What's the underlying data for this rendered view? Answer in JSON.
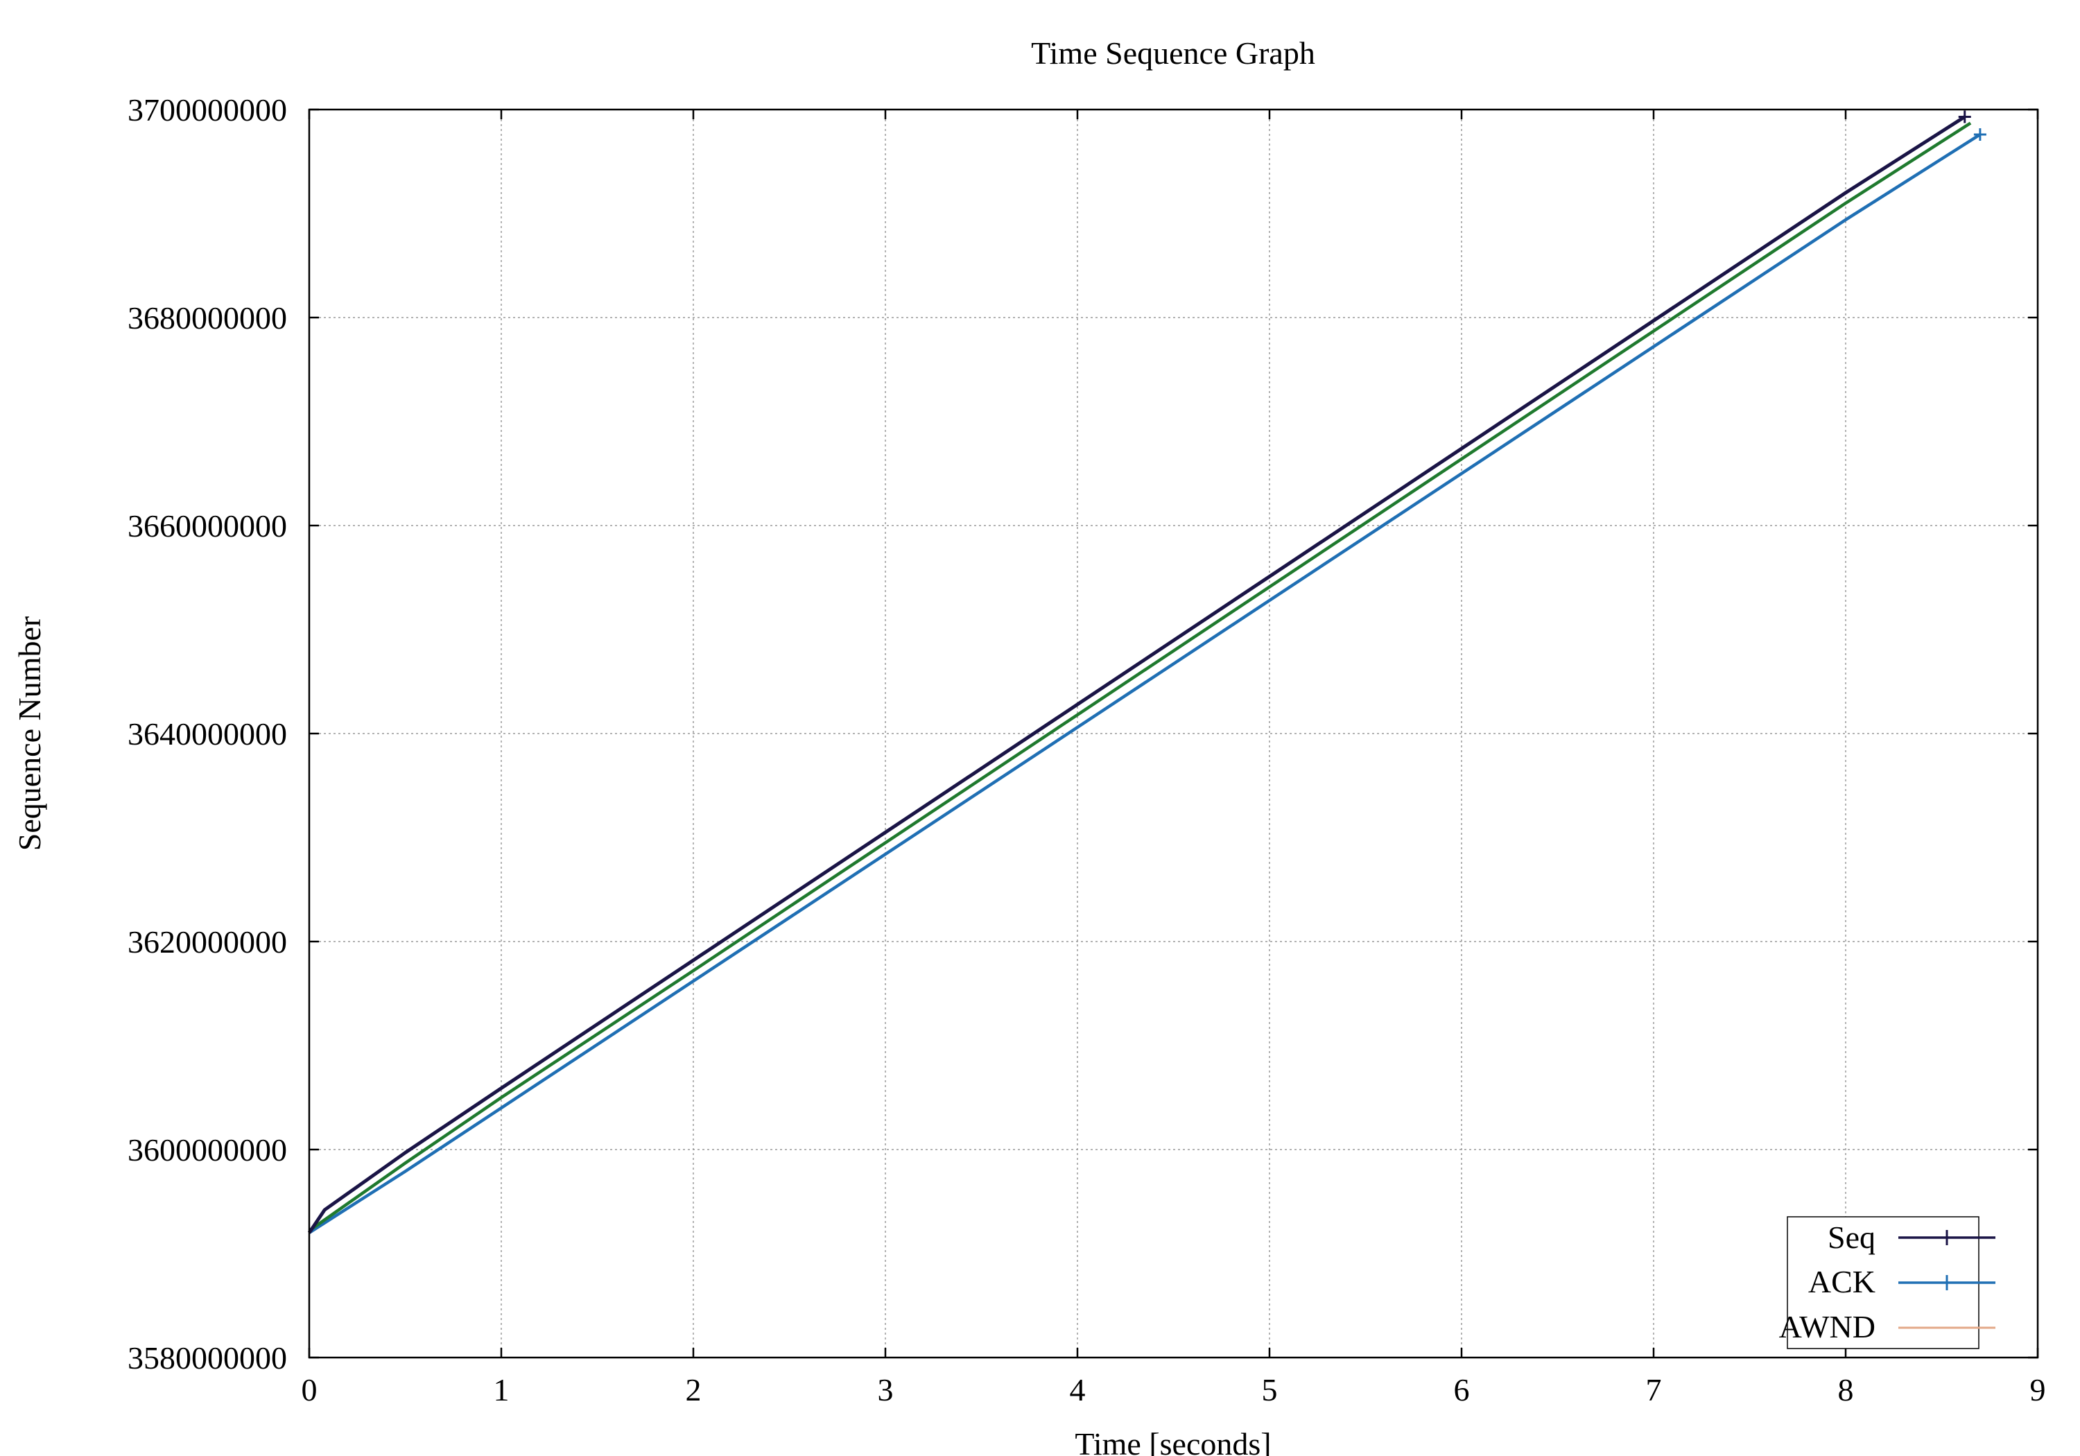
{
  "chart_data": {
    "type": "line",
    "title": "Time Sequence Graph",
    "xlabel": "Time [seconds]",
    "ylabel": "Sequence Number",
    "xlim": [
      0,
      9
    ],
    "ylim": [
      3580000000,
      3700000000
    ],
    "x_ticks": [
      0,
      1,
      2,
      3,
      4,
      5,
      6,
      7,
      8,
      9
    ],
    "x_tick_labels": [
      "0",
      "1",
      "2",
      "3",
      "4",
      "5",
      "6",
      "7",
      "8",
      "9"
    ],
    "y_ticks": [
      3580000000,
      3600000000,
      3620000000,
      3640000000,
      3660000000,
      3680000000,
      3700000000
    ],
    "y_tick_labels": [
      "3580000000",
      "3600000000",
      "3620000000",
      "3640000000",
      "3660000000",
      "3680000000",
      "3700000000"
    ],
    "grid": true,
    "legend_position": "bottom-right",
    "series": [
      {
        "name": "Seq",
        "color": "#1a1446",
        "marker": "plus",
        "x": [
          0,
          0.08,
          0.5,
          1,
          2,
          3,
          4,
          5,
          6,
          7,
          8,
          8.62
        ],
        "y": [
          3592000000,
          3594200000,
          3599700000,
          3605900000,
          3618200000,
          3630500000,
          3642800000,
          3655100000,
          3667400000,
          3679700000,
          3692000000,
          3699300000
        ]
      },
      {
        "name": "ACK",
        "color": "#1f6fb4",
        "marker": "plus",
        "x": [
          0,
          0.5,
          1,
          2,
          3,
          4,
          5,
          6,
          7,
          8,
          8.7
        ],
        "y": [
          3592000000,
          3597900000,
          3604000000,
          3616200000,
          3628400000,
          3640600000,
          3652800000,
          3665000000,
          3677200000,
          3689400000,
          3697600000
        ]
      },
      {
        "name": "AWND",
        "color": "#e3a888",
        "marker": "none",
        "x": [],
        "y": []
      },
      {
        "color": "#1f7a2e",
        "marker": "none",
        "x": [
          0,
          0.5,
          1,
          2,
          3,
          4,
          5,
          6,
          7,
          8,
          8.65
        ],
        "y": [
          3592200000,
          3598700000,
          3605000000,
          3617200000,
          3629500000,
          3641800000,
          3654100000,
          3666400000,
          3678700000,
          3691000000,
          3698700000
        ]
      }
    ]
  }
}
